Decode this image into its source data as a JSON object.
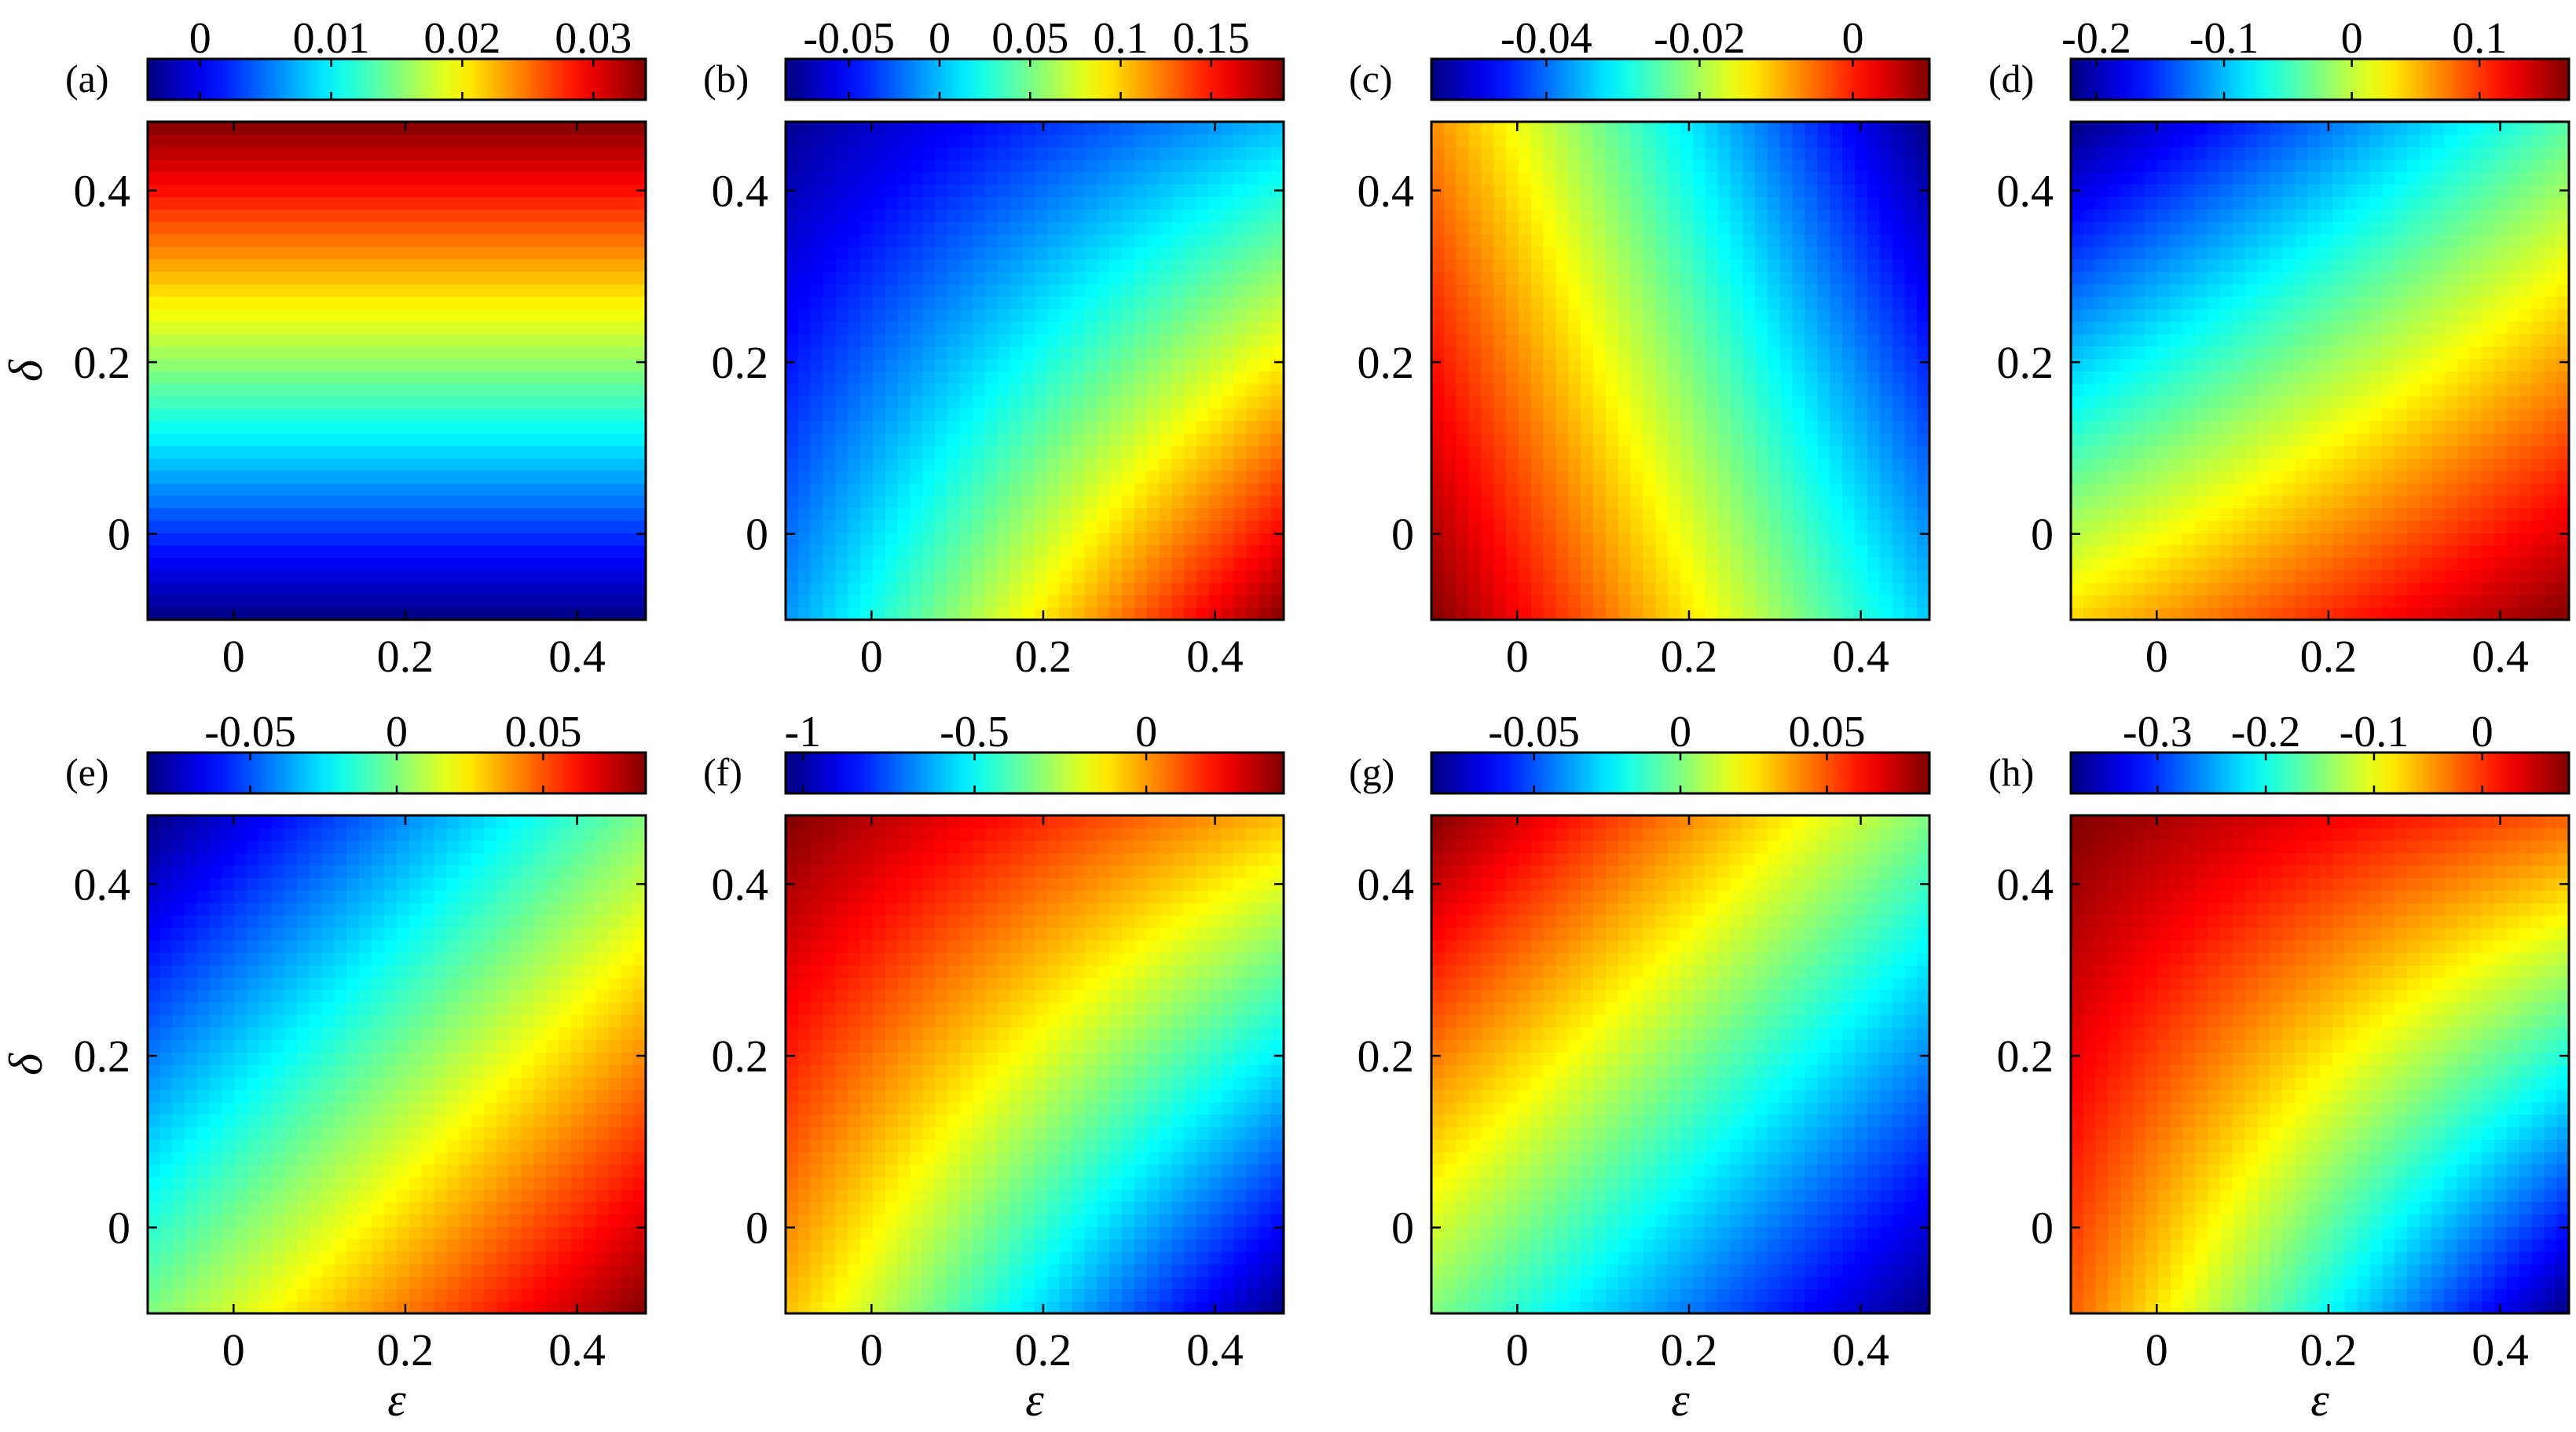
{
  "figure": {
    "x_axis_label": "ε",
    "y_axis_label": "δ"
  },
  "chart_data": [
    {
      "type": "heatmap",
      "panel": "(a)",
      "xlim": [
        -0.1,
        0.48
      ],
      "ylim": [
        -0.1,
        0.48
      ],
      "x_ticks": [
        0,
        0.2,
        0.4
      ],
      "x_tick_labels": [
        "0",
        "0.2",
        "0.4"
      ],
      "y_ticks": [
        0,
        0.2,
        0.4
      ],
      "y_tick_labels": [
        "0",
        "0.2",
        "0.4"
      ],
      "xlabel": "",
      "ylabel": "δ",
      "field": {
        "z_at_corners": {
          "bottom_left": -0.004,
          "bottom_right": -0.004,
          "top_left": 0.034,
          "top_right": 0.034
        }
      },
      "colorbar": {
        "range": [
          -0.004,
          0.034
        ],
        "ticks": [
          0,
          0.01,
          0.02,
          0.03
        ],
        "tick_labels": [
          "0",
          "0.01",
          "0.02",
          "0.03"
        ],
        "colormap": "jet"
      }
    },
    {
      "type": "heatmap",
      "panel": "(b)",
      "xlim": [
        -0.1,
        0.48
      ],
      "ylim": [
        -0.1,
        0.48
      ],
      "x_ticks": [
        0,
        0.2,
        0.4
      ],
      "x_tick_labels": [
        "0",
        "0.2",
        "0.4"
      ],
      "y_ticks": [
        0,
        0.2,
        0.4
      ],
      "y_tick_labels": [
        "0",
        "0.2",
        "0.4"
      ],
      "xlabel": "",
      "ylabel": "",
      "field": {
        "z_at_corners": {
          "bottom_left": -0.01,
          "bottom_right": 0.19,
          "top_left": -0.08,
          "top_right": 0.0
        }
      },
      "colorbar": {
        "range": [
          -0.085,
          0.19
        ],
        "ticks": [
          -0.05,
          0,
          0.05,
          0.1,
          0.15
        ],
        "tick_labels": [
          "-0.05",
          "0",
          "0.05",
          "0.1",
          "0.15"
        ],
        "colormap": "jet"
      }
    },
    {
      "type": "heatmap",
      "panel": "(c)",
      "xlim": [
        -0.1,
        0.48
      ],
      "ylim": [
        -0.1,
        0.48
      ],
      "x_ticks": [
        0,
        0.2,
        0.4
      ],
      "x_tick_labels": [
        "0",
        "0.2",
        "0.4"
      ],
      "y_ticks": [
        0,
        0.2,
        0.4
      ],
      "y_tick_labels": [
        "0",
        "0.2",
        "0.4"
      ],
      "xlabel": "",
      "ylabel": "",
      "field": {
        "z_at_corners": {
          "bottom_left": 0.01,
          "bottom_right": -0.034,
          "top_left": -0.007,
          "top_right": -0.055
        }
      },
      "colorbar": {
        "range": [
          -0.055,
          0.01
        ],
        "ticks": [
          -0.04,
          -0.02,
          0
        ],
        "tick_labels": [
          "-0.04",
          "-0.02",
          "0"
        ],
        "colormap": "jet"
      }
    },
    {
      "type": "heatmap",
      "panel": "(d)",
      "xlim": [
        -0.1,
        0.48
      ],
      "ylim": [
        -0.1,
        0.48
      ],
      "x_ticks": [
        0,
        0.2,
        0.4
      ],
      "x_tick_labels": [
        "0",
        "0.2",
        "0.4"
      ],
      "y_ticks": [
        0,
        0.2,
        0.4
      ],
      "y_tick_labels": [
        "0",
        "0.2",
        "0.4"
      ],
      "xlabel": "",
      "ylabel": "",
      "field": {
        "z_at_corners": {
          "bottom_left": 0.04,
          "bottom_right": 0.17,
          "top_left": -0.22,
          "top_right": -0.04
        }
      },
      "colorbar": {
        "range": [
          -0.22,
          0.17
        ],
        "ticks": [
          -0.2,
          -0.1,
          0,
          0.1
        ],
        "tick_labels": [
          "-0.2",
          "-0.1",
          "0",
          "0.1"
        ],
        "colormap": "jet"
      }
    },
    {
      "type": "heatmap",
      "panel": "(e)",
      "xlim": [
        -0.1,
        0.48
      ],
      "ylim": [
        -0.1,
        0.48
      ],
      "x_ticks": [
        0,
        0.2,
        0.4
      ],
      "x_tick_labels": [
        "0",
        "0.2",
        "0.4"
      ],
      "y_ticks": [
        0,
        0.2,
        0.4
      ],
      "y_tick_labels": [
        "0",
        "0.2",
        "0.4"
      ],
      "xlabel": "ε",
      "ylabel": "δ",
      "field": {
        "z_at_corners": {
          "bottom_left": 0.0,
          "bottom_right": 0.085,
          "top_left": -0.085,
          "top_right": 0.0
        }
      },
      "colorbar": {
        "range": [
          -0.085,
          0.085
        ],
        "ticks": [
          -0.05,
          0,
          0.05
        ],
        "tick_labels": [
          "-0.05",
          "0",
          "0.05"
        ],
        "colormap": "jet"
      }
    },
    {
      "type": "heatmap",
      "panel": "(f)",
      "xlim": [
        -0.1,
        0.48
      ],
      "ylim": [
        -0.1,
        0.48
      ],
      "x_ticks": [
        0,
        0.2,
        0.4
      ],
      "x_tick_labels": [
        "0",
        "0.2",
        "0.4"
      ],
      "y_ticks": [
        0,
        0.2,
        0.4
      ],
      "y_tick_labels": [
        "0",
        "0.2",
        "0.4"
      ],
      "xlabel": "ε",
      "ylabel": "",
      "field": {
        "z_at_corners": {
          "bottom_left": -0.05,
          "bottom_right": -1.05,
          "top_left": 0.4,
          "top_right": -0.05
        }
      },
      "colorbar": {
        "range": [
          -1.05,
          0.4
        ],
        "ticks": [
          -1,
          -0.5,
          0
        ],
        "tick_labels": [
          "-1",
          "-0.5",
          "0"
        ],
        "colormap": "jet"
      }
    },
    {
      "type": "heatmap",
      "panel": "(g)",
      "xlim": [
        -0.1,
        0.48
      ],
      "ylim": [
        -0.1,
        0.48
      ],
      "x_ticks": [
        0,
        0.2,
        0.4
      ],
      "x_tick_labels": [
        "0",
        "0.2",
        "0.4"
      ],
      "y_ticks": [
        0,
        0.2,
        0.4
      ],
      "y_tick_labels": [
        "0",
        "0.2",
        "0.4"
      ],
      "xlabel": "ε",
      "ylabel": "",
      "field": {
        "z_at_corners": {
          "bottom_left": 0.0,
          "bottom_right": -0.085,
          "top_left": 0.085,
          "top_right": 0.0
        }
      },
      "colorbar": {
        "range": [
          -0.085,
          0.085
        ],
        "ticks": [
          -0.05,
          0,
          0.05
        ],
        "tick_labels": [
          "-0.05",
          "0",
          "0.05"
        ],
        "colormap": "jet"
      }
    },
    {
      "type": "heatmap",
      "panel": "(h)",
      "xlim": [
        -0.1,
        0.48
      ],
      "ylim": [
        -0.1,
        0.48
      ],
      "x_ticks": [
        0,
        0.2,
        0.4
      ],
      "x_tick_labels": [
        "0",
        "0.2",
        "0.4"
      ],
      "y_ticks": [
        0,
        0.2,
        0.4
      ],
      "y_tick_labels": [
        "0",
        "0.2",
        "0.4"
      ],
      "xlabel": "ε",
      "ylabel": "",
      "field": {
        "z_at_corners": {
          "bottom_left": -0.02,
          "bottom_right": -0.38,
          "top_left": 0.08,
          "top_right": -0.02
        }
      },
      "colorbar": {
        "range": [
          -0.38,
          0.08
        ],
        "ticks": [
          -0.3,
          -0.2,
          -0.1,
          0
        ],
        "tick_labels": [
          "-0.3",
          "-0.2",
          "-0.1",
          "0"
        ],
        "colormap": "jet"
      }
    }
  ]
}
